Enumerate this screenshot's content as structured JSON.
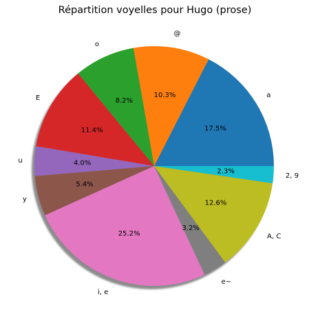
{
  "chart_data": {
    "type": "pie",
    "title": "Répartition voyelles pour Hugo (prose)",
    "legend": "none",
    "shadow": true,
    "start_angle_deg": 0,
    "direction": "counterclockwise",
    "slices": [
      {
        "label": "a",
        "value": 17.5,
        "pct_label": "17.5%",
        "color": "#1f77b4"
      },
      {
        "label": "@",
        "value": 10.3,
        "pct_label": "10.3%",
        "color": "#ff7f0e"
      },
      {
        "label": "o",
        "value": 8.2,
        "pct_label": "8.2%",
        "color": "#2ca02c"
      },
      {
        "label": "E",
        "value": 11.4,
        "pct_label": "11.4%",
        "color": "#d62728"
      },
      {
        "label": "u",
        "value": 4.0,
        "pct_label": "4.0%",
        "color": "#9467bd"
      },
      {
        "label": "y",
        "value": 5.4,
        "pct_label": "5.4%",
        "color": "#8c564b"
      },
      {
        "label": "i, e",
        "value": 25.2,
        "pct_label": "25.2%",
        "color": "#e377c2"
      },
      {
        "label": "e~",
        "value": 3.2,
        "pct_label": "3.2%",
        "color": "#7f7f7f"
      },
      {
        "label": "A, C",
        "value": 12.6,
        "pct_label": "12.6%",
        "color": "#bcbd22"
      },
      {
        "label": "2, 9",
        "value": 2.3,
        "pct_label": "2.3%",
        "color": "#17becf"
      }
    ]
  }
}
